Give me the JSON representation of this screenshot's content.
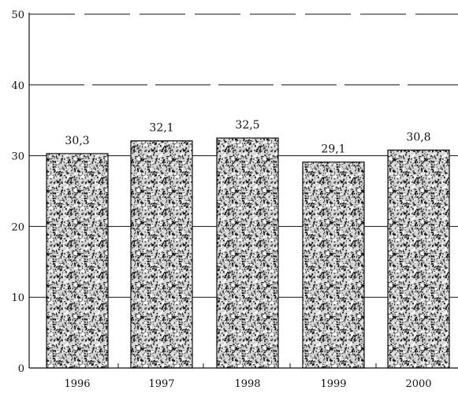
{
  "chart_data": {
    "type": "bar",
    "title": "",
    "xlabel": "",
    "ylabel": "",
    "categories": [
      "1996",
      "1997",
      "1998",
      "1999",
      "2000"
    ],
    "values": [
      30.3,
      32.1,
      32.5,
      29.1,
      30.8
    ],
    "data_labels": [
      "30,3",
      "32,1",
      "32,5",
      "29,1",
      "30,8"
    ],
    "ylim": [
      0,
      50
    ],
    "yticks": [
      "0",
      "10",
      "20",
      "30",
      "40",
      "50"
    ],
    "grid": true,
    "bar_fill": "speckled",
    "colors": {
      "ink": "#111111",
      "background": "#ffffff"
    }
  }
}
